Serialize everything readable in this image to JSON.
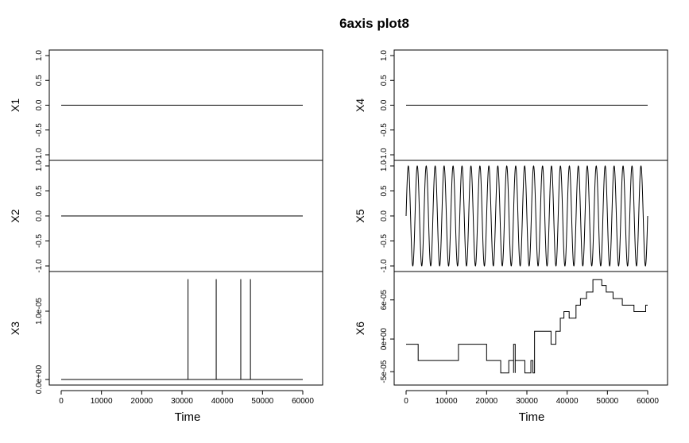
{
  "chart_data": {
    "type": "line",
    "title": "6axis plot8",
    "xlabel": "Time",
    "xlim": [
      0,
      60000
    ],
    "x_ticks": [
      0,
      10000,
      20000,
      30000,
      40000,
      50000,
      60000
    ],
    "x_tick_labels": [
      "0",
      "10000",
      "20000",
      "30000",
      "40000",
      "50000",
      "60000"
    ],
    "panels": [
      {
        "name": "X1",
        "column": 0,
        "row": 0,
        "ylim": [
          -1,
          1
        ],
        "y_ticks": [
          -1,
          -0.5,
          0,
          0.5,
          1
        ],
        "y_tick_labels": [
          "-1.0",
          "-0.5",
          "0.0",
          "0.5",
          "1.0"
        ],
        "x": [
          0,
          60000
        ],
        "y": [
          0,
          0
        ]
      },
      {
        "name": "X2",
        "column": 0,
        "row": 1,
        "ylim": [
          -1,
          1
        ],
        "y_ticks": [
          -1,
          -0.5,
          0,
          0.5,
          1
        ],
        "y_tick_labels": [
          "-1.0",
          "-0.5",
          "0.0",
          "0.5",
          "1.0"
        ],
        "x": [
          0,
          60000
        ],
        "y": [
          0,
          0
        ]
      },
      {
        "name": "X3",
        "column": 0,
        "row": 2,
        "ylim": [
          0,
          1.5e-05
        ],
        "y_ticks": [
          0,
          1e-05
        ],
        "y_tick_labels": [
          "0.0e+00",
          "1.0e-05"
        ],
        "x": [
          0,
          31500,
          31500,
          31500,
          38500,
          38500,
          38500,
          44600,
          44600,
          44600,
          47000,
          47000,
          47000,
          60000
        ],
        "y": [
          0,
          0,
          1.47e-05,
          0,
          0,
          1.47e-05,
          0,
          0,
          1.47e-05,
          0,
          0,
          1.47e-05,
          0,
          0
        ]
      },
      {
        "name": "X4",
        "column": 1,
        "row": 0,
        "ylim": [
          -1,
          1
        ],
        "y_ticks": [
          -1,
          -0.5,
          0,
          0.5,
          1
        ],
        "y_tick_labels": [
          "-1.0",
          "-0.5",
          "0.0",
          "0.5",
          "1.0"
        ],
        "x": [
          0,
          60000
        ],
        "y": [
          0,
          0
        ]
      },
      {
        "name": "X5",
        "column": 1,
        "row": 1,
        "ylim": [
          -1,
          1
        ],
        "y_ticks": [
          -1,
          -0.5,
          0,
          0.5,
          1
        ],
        "y_tick_labels": [
          "-1.0",
          "-0.5",
          "0.0",
          "0.5",
          "1.0"
        ],
        "waveform": "sine",
        "amplitude": 1,
        "cycles": 27,
        "x_start": 0,
        "x_end": 60000
      },
      {
        "name": "X6",
        "column": 1,
        "row": 2,
        "ylim": [
          -6.2e-05,
          9.5e-05
        ],
        "y_ticks": [
          -5e-05,
          0,
          6e-05
        ],
        "y_tick_labels": [
          "-5e-05",
          "0e+00",
          "6e-05"
        ],
        "x": [
          0,
          3000,
          3000,
          13000,
          13000,
          20000,
          20000,
          23500,
          23500,
          25500,
          25500,
          26700,
          26700,
          26700,
          27100,
          27100,
          27100,
          29500,
          29500,
          31000,
          31000,
          31500,
          31500,
          31900,
          31900,
          32600,
          32600,
          36000,
          36000,
          37200,
          37200,
          38300,
          38300,
          39200,
          39200,
          40500,
          40500,
          42200,
          42200,
          43300,
          43300,
          44800,
          44800,
          46400,
          46400,
          48600,
          48600,
          49700,
          49700,
          51400,
          51400,
          53700,
          53700,
          56600,
          56600,
          59500,
          59500,
          60000
        ],
        "y": [
          -8e-06,
          -8e-06,
          -3.3e-05,
          -3.3e-05,
          -8e-06,
          -8e-06,
          -3.3e-05,
          -3.3e-05,
          -5.2e-05,
          -5.2e-05,
          -3.3e-05,
          -3.3e-05,
          -5.2e-05,
          -8e-06,
          -8e-06,
          -5.2e-05,
          -3.3e-05,
          -3.3e-05,
          -5.2e-05,
          -5.2e-05,
          -3.3e-05,
          -3.3e-05,
          -5.2e-05,
          -5.2e-05,
          1.2e-05,
          1.2e-05,
          1.2e-05,
          1.2e-05,
          -8e-06,
          -8e-06,
          1.2e-05,
          1.2e-05,
          3.2e-05,
          3.2e-05,
          4.2e-05,
          4.2e-05,
          3.2e-05,
          3.2e-05,
          5.2e-05,
          5.2e-05,
          6.2e-05,
          6.2e-05,
          7.2e-05,
          7.2e-05,
          9.1e-05,
          9.1e-05,
          8.2e-05,
          8.2e-05,
          7.2e-05,
          7.2e-05,
          6.2e-05,
          6.2e-05,
          5.2e-05,
          5.2e-05,
          4.2e-05,
          4.2e-05,
          5.2e-05,
          5.2e-05
        ]
      }
    ]
  }
}
